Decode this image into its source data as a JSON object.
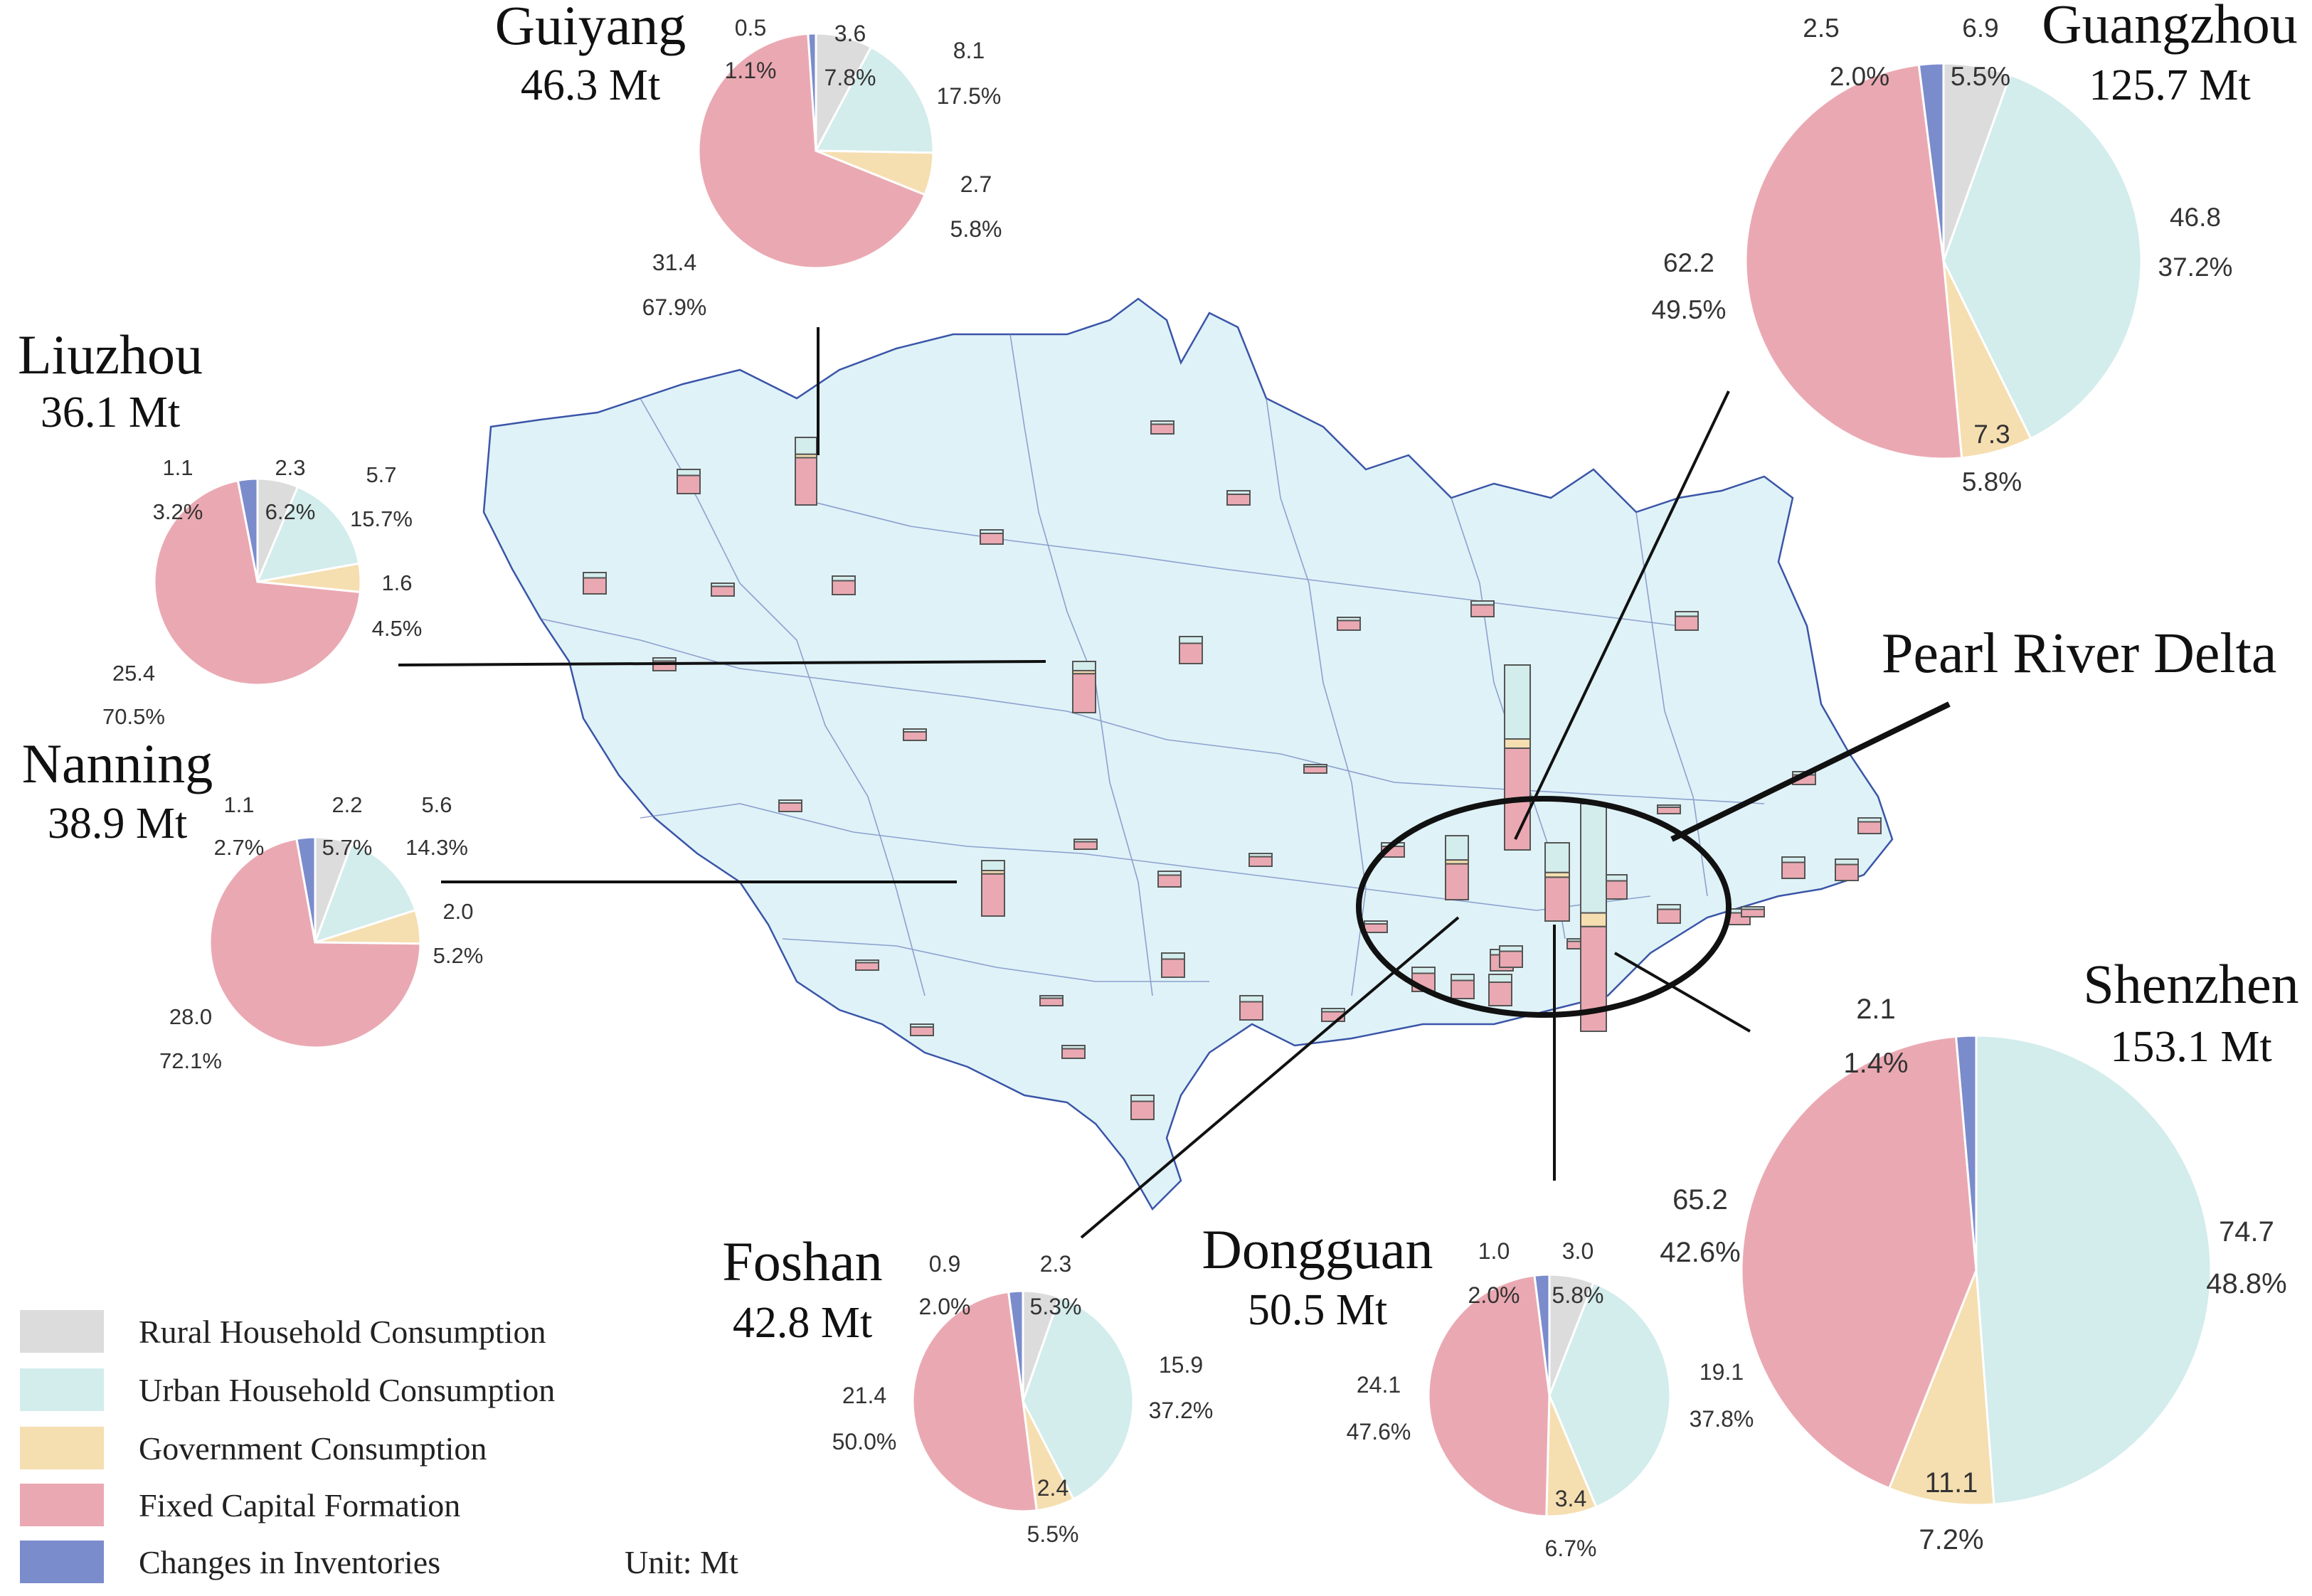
{
  "legend": {
    "items": [
      {
        "label": "Rural Household Consumption",
        "color": "#dcdcdc"
      },
      {
        "label": "Urban Household Consumption",
        "color": "#d3ecec"
      },
      {
        "label": "Government Consumption",
        "color": "#f5deb0"
      },
      {
        "label": "Fixed Capital Formation",
        "color": "#eaa9b2"
      },
      {
        "label": "Changes in Inventories",
        "color": "#7b8ccc"
      }
    ],
    "unit": "Unit: Mt"
  },
  "region_label": "Pearl River Delta",
  "chart_data": [
    {
      "type": "pie",
      "name": "Guiyang",
      "total": "46.3 Mt",
      "categories": [
        "Changes in Inventories",
        "Rural Household Consumption",
        "Urban Household Consumption",
        "Government Consumption",
        "Fixed Capital Formation"
      ],
      "values": [
        0.5,
        3.6,
        8.1,
        2.7,
        31.4
      ],
      "value_labels": [
        "0.5",
        "3.6",
        "8.1",
        "2.7",
        "31.4"
      ],
      "percent_labels": [
        "1.1%",
        "7.8%",
        "17.5%",
        "5.8%",
        "67.9%"
      ]
    },
    {
      "type": "pie",
      "name": "Liuzhou",
      "total": "36.1 Mt",
      "categories": [
        "Changes in Inventories",
        "Rural Household Consumption",
        "Urban Household Consumption",
        "Government Consumption",
        "Fixed Capital Formation"
      ],
      "values": [
        1.1,
        2.3,
        5.7,
        1.6,
        25.4
      ],
      "value_labels": [
        "1.1",
        "2.3",
        "5.7",
        "1.6",
        "25.4"
      ],
      "percent_labels": [
        "3.2%",
        "6.2%",
        "15.7%",
        "4.5%",
        "70.5%"
      ]
    },
    {
      "type": "pie",
      "name": "Nanning",
      "total": "38.9 Mt",
      "categories": [
        "Changes in Inventories",
        "Rural Household Consumption",
        "Urban Household Consumption",
        "Government Consumption",
        "Fixed Capital Formation"
      ],
      "values": [
        1.1,
        2.2,
        5.6,
        2.0,
        28.0
      ],
      "value_labels": [
        "1.1",
        "2.2",
        "5.6",
        "2.0",
        "28.0"
      ],
      "percent_labels": [
        "2.7%",
        "5.7%",
        "14.3%",
        "5.2%",
        "72.1%"
      ]
    },
    {
      "type": "pie",
      "name": "Guangzhou",
      "total": "125.7 Mt",
      "categories": [
        "Changes in Inventories",
        "Rural Household Consumption",
        "Urban Household Consumption",
        "Government Consumption",
        "Fixed Capital Formation"
      ],
      "values": [
        2.5,
        6.9,
        46.8,
        7.3,
        62.2
      ],
      "value_labels": [
        "2.5",
        "6.9",
        "46.8",
        "7.3",
        "62.2"
      ],
      "percent_labels": [
        "2.0%",
        "5.5%",
        "37.2%",
        "5.8%",
        "49.5%"
      ]
    },
    {
      "type": "pie",
      "name": "Shenzhen",
      "total": "153.1 Mt",
      "categories": [
        "Changes in Inventories",
        "Urban Household Consumption",
        "Government Consumption",
        "Fixed Capital Formation"
      ],
      "values": [
        2.1,
        74.7,
        11.1,
        65.2
      ],
      "value_labels": [
        "2.1",
        "74.7",
        "11.1",
        "65.2"
      ],
      "percent_labels": [
        "1.4%",
        "48.8%",
        "7.2%",
        "42.6%"
      ]
    },
    {
      "type": "pie",
      "name": "Foshan",
      "total": "42.8 Mt",
      "categories": [
        "Changes in Inventories",
        "Rural Household Consumption",
        "Urban Household Consumption",
        "Government Consumption",
        "Fixed Capital Formation"
      ],
      "values": [
        0.9,
        2.3,
        15.9,
        2.4,
        21.4
      ],
      "value_labels": [
        "0.9",
        "2.3",
        "15.9",
        "2.4",
        "21.4"
      ],
      "percent_labels": [
        "2.0%",
        "5.3%",
        "37.2%",
        "5.5%",
        "50.0%"
      ]
    },
    {
      "type": "pie",
      "name": "Dongguan",
      "total": "50.5 Mt",
      "categories": [
        "Changes in Inventories",
        "Rural Household Consumption",
        "Urban Household Consumption",
        "Government Consumption",
        "Fixed Capital Formation"
      ],
      "values": [
        1.0,
        3.0,
        19.1,
        3.4,
        24.1
      ],
      "value_labels": [
        "1.0",
        "3.0",
        "19.1",
        "3.4",
        "24.1"
      ],
      "percent_labels": [
        "2.0%",
        "5.8%",
        "37.8%",
        "6.7%",
        "47.6%"
      ]
    }
  ]
}
